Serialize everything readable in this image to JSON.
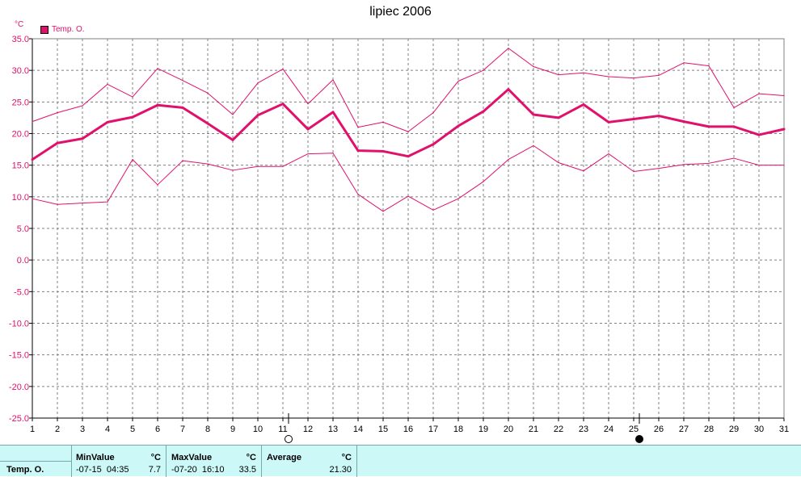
{
  "chart_data": {
    "type": "line",
    "title": "lipiec 2006",
    "unit_label": "°C",
    "x": [
      1,
      2,
      3,
      4,
      5,
      6,
      7,
      8,
      9,
      10,
      11,
      12,
      13,
      14,
      15,
      16,
      17,
      18,
      19,
      20,
      21,
      22,
      23,
      24,
      25,
      26,
      27,
      28,
      29,
      30,
      31
    ],
    "ylim": [
      -25,
      35
    ],
    "yticks": [
      "35.0",
      "30.0",
      "25.0",
      "20.0",
      "15.0",
      "10.0",
      "5.0",
      "0.0",
      "-5.0",
      "-10.0",
      "-15.0",
      "-20.0",
      "-25.0"
    ],
    "grid": true,
    "legend_placement": "top-left",
    "legend": [
      "Temp. O."
    ],
    "series": [
      {
        "name": "Temp. O. max",
        "role": "max",
        "values": [
          21.9,
          23.3,
          24.4,
          27.8,
          25.8,
          30.3,
          28.4,
          26.4,
          23.0,
          28.0,
          30.2,
          24.7,
          28.5,
          21.0,
          21.8,
          20.3,
          23.3,
          28.3,
          30.0,
          33.5,
          30.6,
          29.3,
          29.6,
          29.0,
          28.8,
          29.2,
          31.2,
          30.7,
          24.1,
          26.3,
          26.0
        ]
      },
      {
        "name": "Temp. O.",
        "role": "avg",
        "values": [
          15.9,
          18.5,
          19.2,
          21.8,
          22.6,
          24.5,
          24.1,
          21.6,
          19.0,
          22.9,
          24.7,
          20.7,
          23.4,
          17.3,
          17.2,
          16.4,
          18.3,
          21.2,
          23.5,
          27.0,
          23.0,
          22.5,
          24.6,
          21.8,
          22.3,
          22.8,
          21.9,
          21.1,
          21.1,
          19.8,
          20.7
        ]
      },
      {
        "name": "Temp. O. min",
        "role": "min",
        "values": [
          9.7,
          8.8,
          9.0,
          9.2,
          15.9,
          11.9,
          15.7,
          15.2,
          14.2,
          14.8,
          14.8,
          16.8,
          16.9,
          10.4,
          7.7,
          10.1,
          7.9,
          9.7,
          12.4,
          15.9,
          18.1,
          15.4,
          14.1,
          16.8,
          14.0,
          14.5,
          15.1,
          15.3,
          16.1,
          15.0,
          15.0
        ]
      }
    ],
    "moon_markers": [
      {
        "day": 11,
        "phase": "full-moon"
      },
      {
        "day": 25,
        "phase": "new-moon"
      }
    ],
    "colors": {
      "line": "#e0106c",
      "grid": "#808080",
      "axis": "#000000"
    }
  },
  "stats": {
    "row_label": "Temp. O.",
    "min": {
      "header": "MinValue",
      "unit": "°C",
      "time": "-07-15  04:35",
      "value": "7.7"
    },
    "max": {
      "header": "MaxValue",
      "unit": "°C",
      "time": "-07-20  16:10",
      "value": "33.5"
    },
    "avg": {
      "header": "Average",
      "unit": "°C",
      "value": "21.30"
    }
  }
}
